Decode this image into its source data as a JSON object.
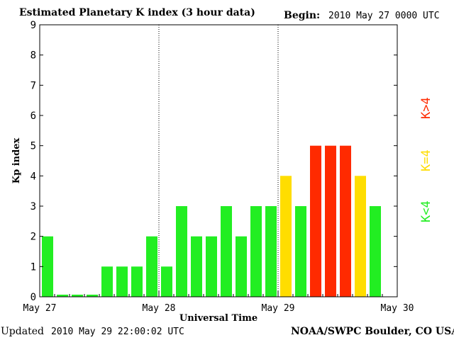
{
  "header": {
    "title": "Estimated Planetary K index (3 hour data)",
    "begin_label": "Begin:",
    "begin_value": "2010 May 27 0000 UTC"
  },
  "footer": {
    "updated_label": "Updated",
    "updated_value": "2010 May 29 22:00:02 UTC",
    "source": "NOAA/SWPC Boulder, CO USA"
  },
  "legend": {
    "low": {
      "text": "K<4",
      "color": "#22ee22"
    },
    "mid": {
      "text": "K=4",
      "color": "#ffdd00"
    },
    "high": {
      "text": "K>4",
      "color": "#ff2a00"
    }
  },
  "chart_data": {
    "type": "bar",
    "title": "Estimated Planetary K index (3 hour data)",
    "xlabel": "Universal Time",
    "ylabel": "Kp index",
    "ylim": [
      0,
      9
    ],
    "yticks": [
      0,
      1,
      2,
      3,
      4,
      5,
      6,
      7,
      8,
      9
    ],
    "xtick_labels": [
      "May 27",
      "May 28",
      "May 29",
      "May 30"
    ],
    "day_dividers": [
      "May 28",
      "May 29"
    ],
    "interval": "3 hour",
    "values": [
      2,
      0,
      0,
      0,
      1,
      1,
      1,
      2,
      1,
      3,
      2,
      2,
      3,
      2,
      3,
      3,
      4,
      3,
      5,
      5,
      5,
      4,
      3
    ],
    "colors": {
      "below4": "#22ee22",
      "equal4": "#ffdd00",
      "above4": "#ff2a00"
    }
  }
}
